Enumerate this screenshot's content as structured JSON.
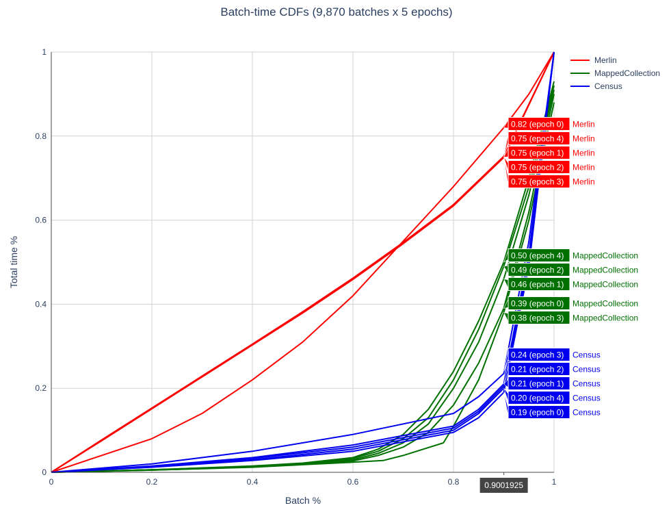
{
  "chart_data": {
    "type": "line",
    "title": "Batch-time CDFs (9,870 batches x 5 epochs)",
    "xlabel": "Batch %",
    "ylabel": "Total time %",
    "xlim": [
      0,
      1
    ],
    "ylim": [
      0,
      1
    ],
    "xticks": [
      "0",
      "0.2",
      "0.4",
      "0.6",
      "0.8",
      "1"
    ],
    "yticks": [
      "0",
      "0.2",
      "0.4",
      "0.6",
      "0.8",
      "1"
    ],
    "grid": true,
    "legend_position": "top-right",
    "legend": [
      {
        "name": "Merlin",
        "color": "#ff0000"
      },
      {
        "name": "MappedCollection",
        "color": "#007000"
      },
      {
        "name": "Census",
        "color": "#0000ee"
      }
    ],
    "hover_x": 0.9001925,
    "hover_x_label": "0.9001925",
    "series": [
      {
        "group": "Merlin",
        "color": "#ff0000",
        "epoch": 0,
        "hover_label": "0.82 (epoch 0)",
        "hover_value": 0.82,
        "x": [
          0,
          0.05,
          0.1,
          0.2,
          0.3,
          0.4,
          0.5,
          0.6,
          0.7,
          0.8,
          0.9,
          0.95,
          1
        ],
        "y": [
          0,
          0.02,
          0.04,
          0.08,
          0.14,
          0.22,
          0.31,
          0.42,
          0.55,
          0.68,
          0.82,
          0.9,
          1
        ]
      },
      {
        "group": "Merlin",
        "color": "#ff0000",
        "epoch": 4,
        "hover_label": "0.75 (epoch 4)",
        "hover_value": 0.75,
        "x": [
          0,
          0.1,
          0.2,
          0.3,
          0.4,
          0.5,
          0.6,
          0.7,
          0.8,
          0.9,
          1
        ],
        "y": [
          0,
          0.076,
          0.152,
          0.228,
          0.304,
          0.38,
          0.46,
          0.545,
          0.635,
          0.75,
          1
        ]
      },
      {
        "group": "Merlin",
        "color": "#ff0000",
        "epoch": 1,
        "hover_label": "0.75 (epoch 1)",
        "hover_value": 0.75,
        "x": [
          0,
          0.1,
          0.2,
          0.3,
          0.4,
          0.5,
          0.6,
          0.7,
          0.8,
          0.9,
          1
        ],
        "y": [
          0,
          0.077,
          0.153,
          0.229,
          0.305,
          0.382,
          0.462,
          0.547,
          0.637,
          0.752,
          1
        ]
      },
      {
        "group": "Merlin",
        "color": "#ff0000",
        "epoch": 2,
        "hover_label": "0.75 (epoch 2)",
        "hover_value": 0.75,
        "x": [
          0,
          0.1,
          0.2,
          0.3,
          0.4,
          0.5,
          0.6,
          0.7,
          0.8,
          0.9,
          1
        ],
        "y": [
          0,
          0.075,
          0.151,
          0.227,
          0.303,
          0.379,
          0.459,
          0.544,
          0.634,
          0.749,
          1
        ]
      },
      {
        "group": "Merlin",
        "color": "#ff0000",
        "epoch": 3,
        "hover_label": "0.75 (epoch 3)",
        "hover_value": 0.75,
        "x": [
          0,
          0.1,
          0.2,
          0.3,
          0.4,
          0.5,
          0.6,
          0.7,
          0.8,
          0.9,
          1
        ],
        "y": [
          0,
          0.076,
          0.152,
          0.228,
          0.304,
          0.381,
          0.461,
          0.546,
          0.636,
          0.751,
          1
        ]
      },
      {
        "group": "MappedCollection",
        "color": "#007000",
        "epoch": 4,
        "hover_label": "0.50 (epoch 4)",
        "hover_value": 0.5,
        "x": [
          0,
          0.2,
          0.4,
          0.5,
          0.6,
          0.65,
          0.7,
          0.75,
          0.8,
          0.85,
          0.9,
          0.95,
          1
        ],
        "y": [
          0,
          0.006,
          0.015,
          0.022,
          0.035,
          0.055,
          0.09,
          0.15,
          0.24,
          0.36,
          0.5,
          0.7,
          0.93
        ]
      },
      {
        "group": "MappedCollection",
        "color": "#007000",
        "epoch": 2,
        "hover_label": "0.49 (epoch 2)",
        "hover_value": 0.49,
        "x": [
          0,
          0.2,
          0.4,
          0.5,
          0.6,
          0.65,
          0.7,
          0.75,
          0.8,
          0.85,
          0.9,
          0.95,
          1
        ],
        "y": [
          0,
          0.006,
          0.014,
          0.021,
          0.033,
          0.05,
          0.08,
          0.13,
          0.22,
          0.34,
          0.49,
          0.68,
          0.92
        ]
      },
      {
        "group": "MappedCollection",
        "color": "#007000",
        "epoch": 1,
        "hover_label": "0.46 (epoch 1)",
        "hover_value": 0.46,
        "x": [
          0,
          0.2,
          0.4,
          0.5,
          0.6,
          0.65,
          0.7,
          0.75,
          0.8,
          0.85,
          0.9,
          0.95,
          1
        ],
        "y": [
          0,
          0.006,
          0.014,
          0.02,
          0.03,
          0.045,
          0.07,
          0.115,
          0.2,
          0.31,
          0.46,
          0.66,
          0.91
        ]
      },
      {
        "group": "MappedCollection",
        "color": "#007000",
        "epoch": 0,
        "hover_label": "0.39 (epoch 0)",
        "hover_value": 0.39,
        "x": [
          0,
          0.2,
          0.4,
          0.5,
          0.6,
          0.65,
          0.7,
          0.75,
          0.8,
          0.85,
          0.9,
          0.95,
          1
        ],
        "y": [
          0,
          0.005,
          0.013,
          0.019,
          0.027,
          0.04,
          0.06,
          0.095,
          0.16,
          0.26,
          0.39,
          0.62,
          0.9
        ]
      },
      {
        "group": "MappedCollection",
        "color": "#007000",
        "epoch": 3,
        "hover_label": "0.38 (epoch 3)",
        "hover_value": 0.38,
        "x": [
          0,
          0.2,
          0.4,
          0.5,
          0.6,
          0.66,
          0.7,
          0.78,
          0.8,
          0.85,
          0.9,
          0.95,
          1
        ],
        "y": [
          0,
          0.005,
          0.012,
          0.018,
          0.024,
          0.028,
          0.04,
          0.07,
          0.11,
          0.22,
          0.38,
          0.6,
          0.88
        ]
      },
      {
        "group": "Census",
        "color": "#0000ee",
        "epoch": 3,
        "hover_label": "0.24 (epoch 3)",
        "hover_value": 0.24,
        "x": [
          0,
          0.2,
          0.4,
          0.6,
          0.8,
          0.85,
          0.9,
          0.95,
          1
        ],
        "y": [
          0,
          0.02,
          0.05,
          0.09,
          0.14,
          0.18,
          0.235,
          0.55,
          1
        ]
      },
      {
        "group": "Census",
        "color": "#0000ee",
        "epoch": 2,
        "hover_label": "0.21 (epoch 2)",
        "hover_value": 0.21,
        "x": [
          0,
          0.2,
          0.4,
          0.6,
          0.8,
          0.85,
          0.9,
          0.95,
          1
        ],
        "y": [
          0,
          0.015,
          0.035,
          0.065,
          0.11,
          0.15,
          0.21,
          0.52,
          1
        ]
      },
      {
        "group": "Census",
        "color": "#0000ee",
        "epoch": 1,
        "hover_label": "0.21 (epoch 1)",
        "hover_value": 0.21,
        "x": [
          0,
          0.2,
          0.4,
          0.6,
          0.8,
          0.85,
          0.9,
          0.95,
          1
        ],
        "y": [
          0,
          0.014,
          0.033,
          0.06,
          0.105,
          0.145,
          0.205,
          0.51,
          1
        ]
      },
      {
        "group": "Census",
        "color": "#0000ee",
        "epoch": 4,
        "hover_label": "0.20 (epoch 4)",
        "hover_value": 0.2,
        "x": [
          0,
          0.2,
          0.4,
          0.6,
          0.8,
          0.85,
          0.9,
          0.95,
          1
        ],
        "y": [
          0,
          0.013,
          0.03,
          0.055,
          0.1,
          0.14,
          0.2,
          0.5,
          1
        ]
      },
      {
        "group": "Census",
        "color": "#0000ee",
        "epoch": 0,
        "hover_label": "0.19 (epoch 0)",
        "hover_value": 0.19,
        "x": [
          0,
          0.2,
          0.4,
          0.6,
          0.8,
          0.85,
          0.9,
          0.95,
          1
        ],
        "y": [
          0,
          0.012,
          0.028,
          0.05,
          0.095,
          0.13,
          0.19,
          0.49,
          1
        ]
      }
    ]
  }
}
